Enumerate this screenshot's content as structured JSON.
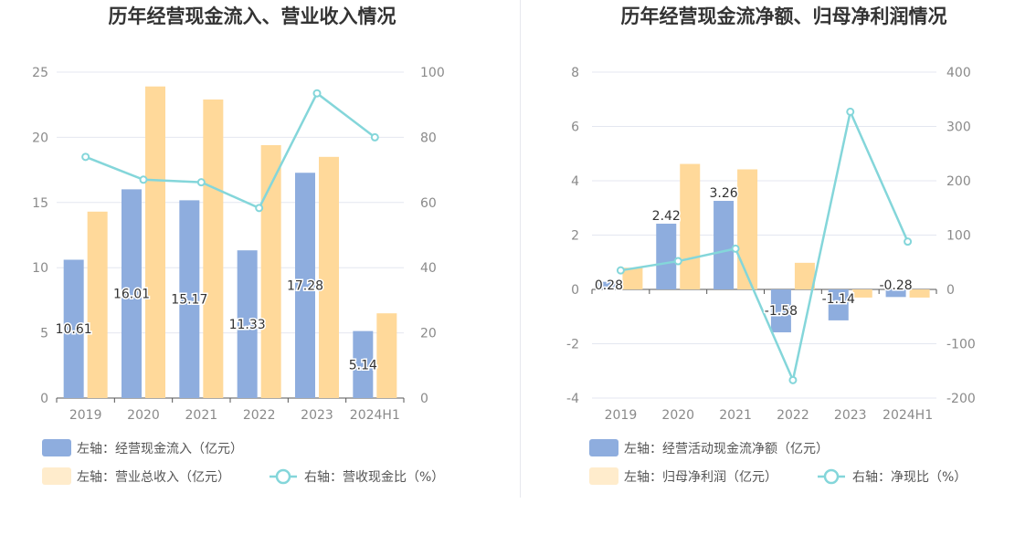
{
  "colors": {
    "bar1": "#8eadde",
    "bar2": "#ffd99a",
    "line": "#84d6da",
    "grid": "#e4e7f0",
    "axis": "#555555"
  },
  "chart_data": [
    {
      "type": "bar",
      "title": "历年经营现金流入、营业收入情况",
      "categories": [
        "2019",
        "2020",
        "2021",
        "2022",
        "2023",
        "2024H1"
      ],
      "left_axis": {
        "min": 0,
        "max": 25,
        "ticks": [
          "0",
          "5",
          "10",
          "15",
          "20",
          "25"
        ]
      },
      "right_axis": {
        "min": 0,
        "max": 100,
        "ticks": [
          "0",
          "20",
          "40",
          "60",
          "80",
          "100"
        ]
      },
      "series": [
        {
          "name": "左轴：经营现金流入（亿元）",
          "kind": "bar",
          "axis": "left",
          "values": [
            10.61,
            16.01,
            15.17,
            11.33,
            17.28,
            5.14
          ],
          "labels": [
            "10.61",
            "16.01",
            "15.17",
            "11.33",
            "17.28",
            "5.14"
          ]
        },
        {
          "name": "左轴：营业总收入（亿元）",
          "kind": "bar",
          "axis": "left",
          "values": [
            14.3,
            23.9,
            22.9,
            19.4,
            18.5,
            6.5
          ]
        },
        {
          "name": "右轴：营收现金比（%）",
          "kind": "line",
          "axis": "right",
          "values": [
            74.0,
            67.0,
            66.2,
            58.3,
            93.5,
            80.0
          ]
        }
      ]
    },
    {
      "type": "bar",
      "title": "历年经营现金流净额、归母净利润情况",
      "categories": [
        "2019",
        "2020",
        "2021",
        "2022",
        "2023",
        "2024H1"
      ],
      "left_axis": {
        "min": -4,
        "max": 8,
        "ticks": [
          "-4",
          "-2",
          "0",
          "2",
          "4",
          "6",
          "8"
        ]
      },
      "right_axis": {
        "min": -200,
        "max": 400,
        "ticks": [
          "-200",
          "-100",
          "0",
          "100",
          "200",
          "300",
          "400"
        ]
      },
      "series": [
        {
          "name": "左轴：经营活动现金流净额（亿元）",
          "kind": "bar",
          "axis": "left",
          "values": [
            0.28,
            2.42,
            3.26,
            -1.58,
            -1.14,
            -0.28
          ],
          "labels": [
            "0.28",
            "2.42",
            "3.26",
            "-1.58",
            "-1.14",
            "-0.28"
          ]
        },
        {
          "name": "左轴：归母净利润（亿元）",
          "kind": "bar",
          "axis": "left",
          "values": [
            0.8,
            4.62,
            4.42,
            0.98,
            -0.3,
            -0.3
          ]
        },
        {
          "name": "右轴：净现比（%）",
          "kind": "line",
          "axis": "right",
          "values": [
            35,
            52,
            75,
            -167,
            327,
            88
          ]
        }
      ]
    }
  ]
}
